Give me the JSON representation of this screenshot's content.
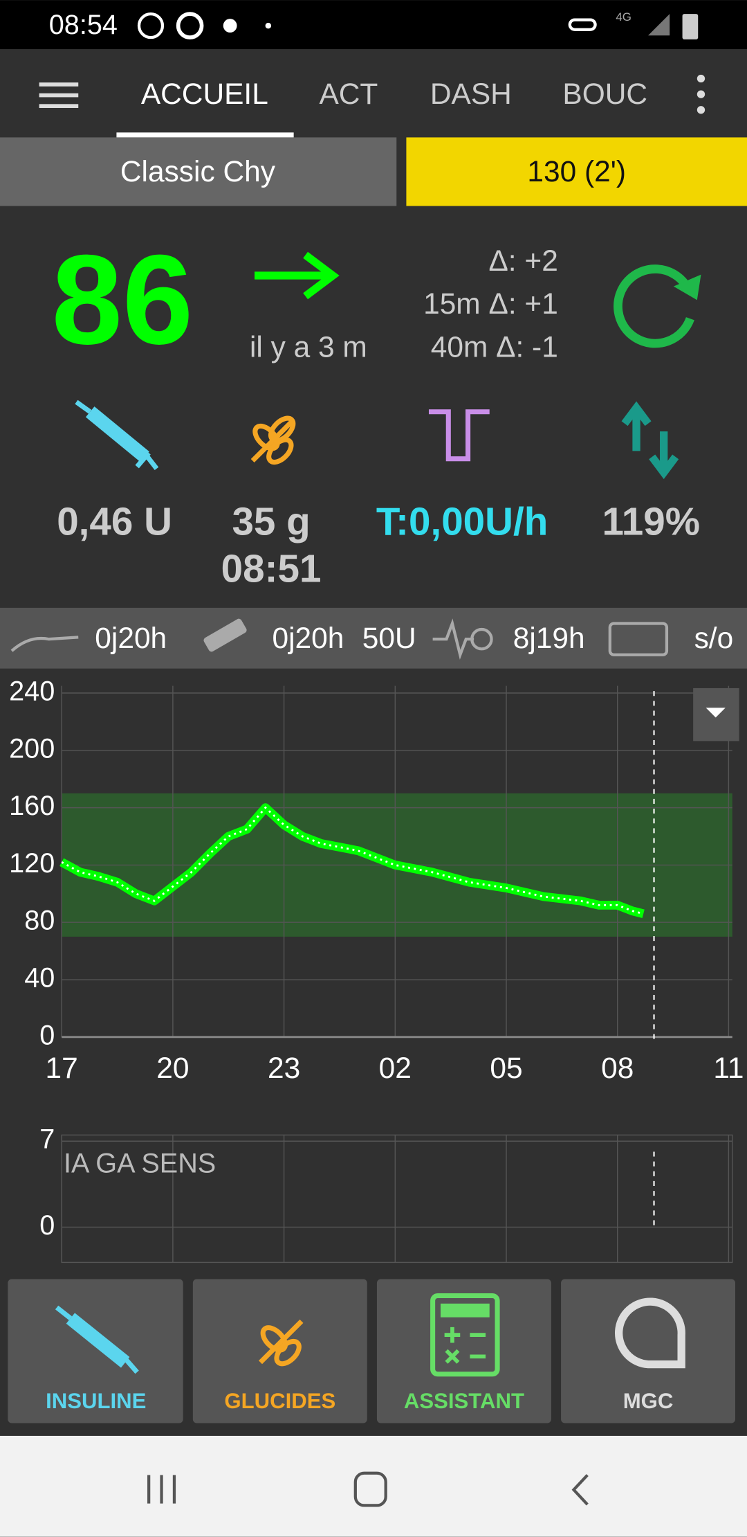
{
  "status_bar": {
    "time": "08:54",
    "network": "4G"
  },
  "tabs": [
    "ACCUEIL",
    "ACT",
    "DASH",
    "BOUC"
  ],
  "profile": "Classic Chy",
  "target": "130 (2')",
  "glucose": {
    "value": "86",
    "age": "il y a 3 m",
    "delta": "Δ: +2",
    "delta_15m": "15m Δ: +1",
    "delta_40m": "40m Δ:  -1"
  },
  "info": {
    "insulin": "0,46 U",
    "carbs": "35 g",
    "carbs_time": "08:51",
    "basal": "T:0,00U/h",
    "sensitivity": "119%"
  },
  "pump_status": {
    "cannula_age": "0j20h",
    "reservoir_age": "0j20h",
    "reservoir_level": "50U",
    "sensor_age": "8j19h",
    "battery": "s/o"
  },
  "bg_graph": {
    "type": "line",
    "ylim": [
      0,
      245
    ],
    "yticks": [
      0,
      40,
      80,
      120,
      160,
      200,
      240
    ],
    "xlim": [
      17,
      35.1
    ],
    "xticks": [
      {
        "value": 17,
        "label": "17"
      },
      {
        "value": 20,
        "label": "20"
      },
      {
        "value": 23,
        "label": "23"
      },
      {
        "value": 26,
        "label": "02"
      },
      {
        "value": 29,
        "label": "05"
      },
      {
        "value": 32,
        "label": "08"
      },
      {
        "value": 35,
        "label": "11"
      }
    ],
    "target_range": [
      70,
      170
    ],
    "grid": true,
    "series": [
      {
        "color": "#00ff00",
        "x": [
          17,
          17.5,
          18,
          18.5,
          19,
          19.5,
          20,
          20.5,
          21,
          21.5,
          22,
          22.5,
          23,
          23.5,
          24,
          25,
          26,
          27,
          28,
          29,
          30,
          31,
          31.5,
          32,
          32.4,
          32.7
        ],
        "values": [
          122,
          115,
          112,
          108,
          100,
          95,
          105,
          115,
          128,
          140,
          145,
          160,
          148,
          140,
          135,
          130,
          120,
          115,
          108,
          104,
          98,
          95,
          92,
          92,
          88,
          86
        ]
      }
    ]
  },
  "iob_graph": {
    "label": "IA GA SENS",
    "ylim": [
      0,
      7.5
    ],
    "yticks": [
      0,
      7
    ]
  },
  "buttons": [
    "INSULINE",
    "GLUCIDES",
    "ASSISTANT",
    "MGC"
  ]
}
